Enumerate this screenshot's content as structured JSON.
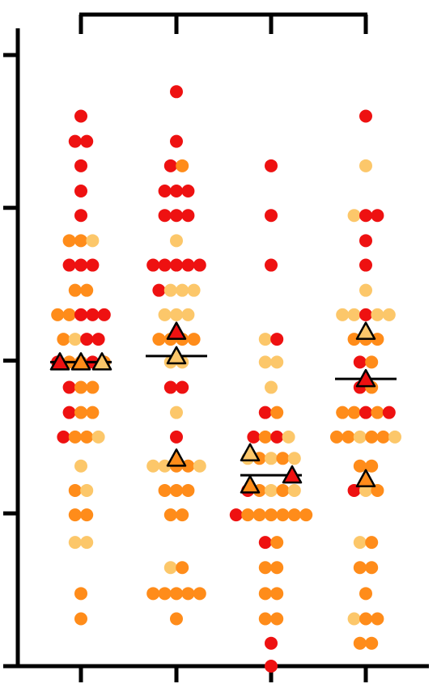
{
  "chart_data": {
    "type": "scatter",
    "title": "",
    "xlabel": "",
    "ylabel": "",
    "ylim": [
      0,
      8
    ],
    "y_ticks": [
      0,
      2,
      4,
      6,
      8
    ],
    "grid": false,
    "legend": "none",
    "significance_bracket": {
      "from": 0,
      "to": 3
    },
    "colors": {
      "red": "#ee1111",
      "orange": "#ff8c1a",
      "pale": "#fcc76a",
      "axis": "#000000",
      "median": "#000000",
      "triangle_stroke": "#000000"
    },
    "groups": [
      {
        "median": 3.98,
        "triangles": [
          {
            "offset": -1,
            "y": 3.98,
            "color": "red"
          },
          {
            "offset": 0,
            "y": 3.98,
            "color": "orange"
          },
          {
            "offset": 1,
            "y": 3.98,
            "color": "pale"
          }
        ],
        "rows": [
          {
            "y": 7.2,
            "c": [
              "red"
            ]
          },
          {
            "y": 6.87,
            "c": [
              "red",
              "red"
            ]
          },
          {
            "y": 6.55,
            "c": [
              "red"
            ]
          },
          {
            "y": 6.22,
            "c": [
              "red"
            ]
          },
          {
            "y": 5.9,
            "c": [
              "red"
            ]
          },
          {
            "y": 5.57,
            "c": [
              "orange",
              "orange",
              "pale"
            ]
          },
          {
            "y": 5.25,
            "c": [
              "red",
              "red",
              "red"
            ]
          },
          {
            "y": 4.92,
            "c": [
              "orange",
              "orange"
            ]
          },
          {
            "y": 4.6,
            "c": [
              "orange",
              "orange",
              "red",
              "red",
              "red"
            ]
          },
          {
            "y": 4.28,
            "c": [
              "orange",
              "pale",
              "red",
              "red"
            ]
          },
          {
            "y": 3.98,
            "c": [
              "red",
              "orange",
              "orange",
              "red",
              "orange"
            ]
          },
          {
            "y": 3.65,
            "c": [
              "red",
              "orange",
              "orange"
            ]
          },
          {
            "y": 3.32,
            "c": [
              "red",
              "orange",
              "orange"
            ]
          },
          {
            "y": 3.0,
            "c": [
              "red",
              "orange",
              "orange",
              "pale"
            ]
          },
          {
            "y": 2.62,
            "c": [
              "pale"
            ]
          },
          {
            "y": 2.3,
            "c": [
              "orange",
              "pale"
            ]
          },
          {
            "y": 1.98,
            "c": [
              "orange",
              "orange"
            ]
          },
          {
            "y": 1.62,
            "c": [
              "pale",
              "pale"
            ]
          },
          {
            "y": 0.95,
            "c": [
              "orange"
            ]
          },
          {
            "y": 0.62,
            "c": [
              "orange"
            ]
          }
        ]
      },
      {
        "median": 4.06,
        "triangles": [
          {
            "offset": 0,
            "y": 4.38,
            "color": "red"
          },
          {
            "offset": 0,
            "y": 4.06,
            "color": "pale"
          },
          {
            "offset": 0,
            "y": 2.72,
            "color": "orange"
          }
        ],
        "rows": [
          {
            "y": 7.52,
            "c": [
              "red"
            ]
          },
          {
            "y": 6.87,
            "c": [
              "red"
            ]
          },
          {
            "y": 6.55,
            "c": [
              "red",
              "orange"
            ]
          },
          {
            "y": 6.22,
            "c": [
              "red",
              "red",
              "red"
            ]
          },
          {
            "y": 5.9,
            "c": [
              "red",
              "red",
              "red"
            ]
          },
          {
            "y": 5.57,
            "c": [
              "pale"
            ]
          },
          {
            "y": 5.25,
            "c": [
              "red",
              "red",
              "red",
              "red",
              "red"
            ]
          },
          {
            "y": 4.92,
            "c": [
              "red",
              "pale",
              "pale",
              "pale"
            ]
          },
          {
            "y": 4.6,
            "c": [
              "pale",
              "pale",
              "pale"
            ]
          },
          {
            "y": 4.28,
            "c": [
              "orange",
              "orange",
              "orange",
              "orange"
            ]
          },
          {
            "y": 3.98,
            "c": [
              "pale",
              "pale"
            ]
          },
          {
            "y": 3.65,
            "c": [
              "red",
              "red"
            ]
          },
          {
            "y": 3.32,
            "c": [
              "pale"
            ]
          },
          {
            "y": 3.0,
            "c": [
              "red"
            ]
          },
          {
            "y": 2.62,
            "c": [
              "pale",
              "pale",
              "orange",
              "orange",
              "pale"
            ]
          },
          {
            "y": 2.3,
            "c": [
              "orange",
              "orange",
              "orange"
            ]
          },
          {
            "y": 1.98,
            "c": [
              "orange",
              "orange"
            ]
          },
          {
            "y": 1.29,
            "c": [
              "pale",
              "orange"
            ]
          },
          {
            "y": 0.95,
            "c": [
              "orange",
              "orange",
              "orange",
              "orange",
              "orange"
            ]
          },
          {
            "y": 0.62,
            "c": [
              "orange"
            ]
          }
        ]
      },
      {
        "median": 2.5,
        "triangles": [
          {
            "offset": -1,
            "y": 2.79,
            "color": "pale"
          },
          {
            "offset": -1,
            "y": 2.37,
            "color": "orange"
          },
          {
            "offset": 1,
            "y": 2.5,
            "color": "red"
          }
        ],
        "rows": [
          {
            "y": 6.55,
            "c": [
              "red"
            ]
          },
          {
            "y": 5.9,
            "c": [
              "red"
            ]
          },
          {
            "y": 5.25,
            "c": [
              "red"
            ]
          },
          {
            "y": 4.28,
            "c": [
              "pale",
              "red"
            ]
          },
          {
            "y": 3.98,
            "c": [
              "pale",
              "pale"
            ]
          },
          {
            "y": 3.65,
            "c": [
              "pale"
            ]
          },
          {
            "y": 3.32,
            "c": [
              "red",
              "orange"
            ]
          },
          {
            "y": 3.0,
            "c": [
              "red",
              "orange",
              "red",
              "pale"
            ]
          },
          {
            "y": 2.72,
            "c": [
              "pale",
              "orange",
              "pale",
              "orange",
              "pale"
            ]
          },
          {
            "y": 2.3,
            "c": [
              "red",
              "orange",
              "pale",
              "orange",
              "pale"
            ]
          },
          {
            "y": 1.98,
            "c": [
              "red",
              "orange",
              "orange",
              "orange",
              "orange",
              "orange",
              "orange"
            ]
          },
          {
            "y": 1.62,
            "c": [
              "red",
              "orange"
            ]
          },
          {
            "y": 1.29,
            "c": [
              "orange",
              "orange"
            ]
          },
          {
            "y": 0.95,
            "c": [
              "orange",
              "orange"
            ]
          },
          {
            "y": 0.62,
            "c": [
              "orange",
              "orange"
            ]
          },
          {
            "y": 0.3,
            "c": [
              "red"
            ]
          },
          {
            "y": 0.0,
            "c": [
              "red"
            ]
          }
        ]
      },
      {
        "median": 3.76,
        "triangles": [
          {
            "offset": 0,
            "y": 4.38,
            "color": "pale"
          },
          {
            "offset": 0,
            "y": 3.76,
            "color": "red"
          },
          {
            "offset": 0,
            "y": 2.45,
            "color": "orange"
          }
        ],
        "rows": [
          {
            "y": 7.2,
            "c": [
              "red"
            ]
          },
          {
            "y": 6.55,
            "c": [
              "pale"
            ]
          },
          {
            "y": 5.9,
            "c": [
              "pale",
              "red",
              "red"
            ]
          },
          {
            "y": 5.57,
            "c": [
              "red"
            ]
          },
          {
            "y": 5.25,
            "c": [
              "red"
            ]
          },
          {
            "y": 4.92,
            "c": [
              "pale"
            ]
          },
          {
            "y": 4.6,
            "c": [
              "pale",
              "pale",
              "red",
              "pale",
              "pale"
            ]
          },
          {
            "y": 4.28,
            "c": [
              "orange",
              "orange",
              "orange"
            ]
          },
          {
            "y": 3.98,
            "c": [
              "red",
              "orange"
            ]
          },
          {
            "y": 3.65,
            "c": [
              "red",
              "orange"
            ]
          },
          {
            "y": 3.32,
            "c": [
              "orange",
              "orange",
              "red",
              "orange",
              "red"
            ]
          },
          {
            "y": 3.0,
            "c": [
              "orange",
              "orange",
              "pale",
              "orange",
              "orange",
              "pale"
            ]
          },
          {
            "y": 2.62,
            "c": [
              "orange",
              "orange"
            ]
          },
          {
            "y": 2.3,
            "c": [
              "red",
              "pale",
              "orange"
            ]
          },
          {
            "y": 1.62,
            "c": [
              "pale",
              "orange"
            ]
          },
          {
            "y": 1.29,
            "c": [
              "orange",
              "orange"
            ]
          },
          {
            "y": 0.95,
            "c": [
              "orange"
            ]
          },
          {
            "y": 0.62,
            "c": [
              "pale",
              "orange",
              "orange"
            ]
          },
          {
            "y": 0.3,
            "c": [
              "orange",
              "orange"
            ]
          }
        ]
      }
    ]
  }
}
